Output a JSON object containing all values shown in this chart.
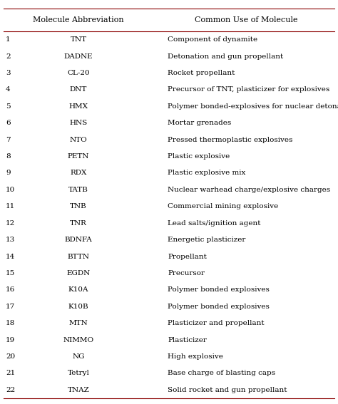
{
  "col1_header": "Molecule Abbreviation",
  "col2_header": "Common Use of Molecule",
  "rows": [
    [
      "1",
      "TNT",
      "Component of dynamite"
    ],
    [
      "2",
      "DADNE",
      "Detonation and gun propellant"
    ],
    [
      "3",
      "CL-20",
      "Rocket propellant"
    ],
    [
      "4",
      "DNT",
      "Precursor of TNT, plasticizer for explosives"
    ],
    [
      "5",
      "HMX",
      "Polymer bonded-explosives for nuclear detonation"
    ],
    [
      "6",
      "HNS",
      "Mortar grenades"
    ],
    [
      "7",
      "NTO",
      "Pressed thermoplastic explosives"
    ],
    [
      "8",
      "PETN",
      "Plastic explosive"
    ],
    [
      "9",
      "RDX",
      "Plastic explosive mix"
    ],
    [
      "10",
      "TATB",
      "Nuclear warhead charge/explosive charges"
    ],
    [
      "11",
      "TNB",
      "Commercial mining explosive"
    ],
    [
      "12",
      "TNR",
      "Lead salts/ignition agent"
    ],
    [
      "13",
      "BDNFA",
      "Energetic plasticizer"
    ],
    [
      "14",
      "BTTN",
      "Propellant"
    ],
    [
      "15",
      "EGDN",
      "Precursor"
    ],
    [
      "16",
      "K10A",
      "Polymer bonded explosives"
    ],
    [
      "17",
      "K10B",
      "Polymer bonded explosives"
    ],
    [
      "18",
      "MTN",
      "Plasticizer and propellant"
    ],
    [
      "19",
      "NIMMO",
      "Plasticizer"
    ],
    [
      "20",
      "NG",
      "High explosive"
    ],
    [
      "21",
      "Tetryl",
      "Base charge of blasting caps"
    ],
    [
      "22",
      "TNAZ",
      "Solid rocket and gun propellant"
    ]
  ],
  "bg_color": "#ffffff",
  "header_line_color": "#8b0000",
  "text_color": "#000000",
  "font_size": 7.5,
  "header_font_size": 8.0,
  "fig_width": 4.74,
  "fig_height": 5.67,
  "dpi": 100
}
